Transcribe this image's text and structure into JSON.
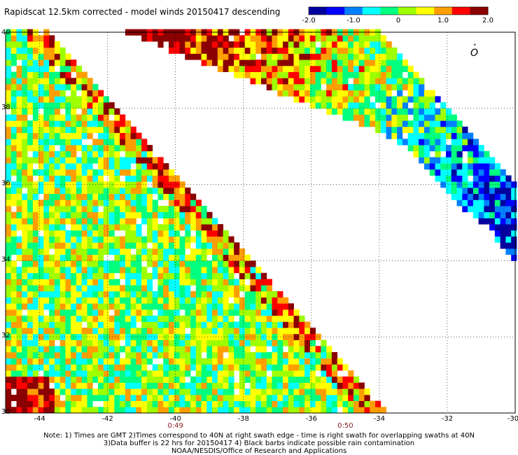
{
  "chart_data": {
    "type": "heatmap",
    "title": "Rapidscat 12.5km corrected - model winds 20150417 descending",
    "x_ticks": [
      "-44",
      "-42",
      "-40",
      "-38",
      "-36",
      "-34",
      "-32",
      "-30"
    ],
    "y_ticks": [
      "30",
      "32",
      "34",
      "36",
      "38",
      "40"
    ],
    "xlim": [
      -45,
      -30
    ],
    "ylim": [
      30,
      40
    ],
    "grid": true,
    "colorbar": {
      "range": [
        -2.0,
        2.0
      ],
      "ticks": [
        "-2.0",
        "-1.0",
        "0",
        "1.0",
        "2.0"
      ],
      "position": "top-right"
    },
    "colors": [
      "#00009e",
      "#0000ff",
      "#007fff",
      "#00ffff",
      "#00ff7f",
      "#9eff00",
      "#ffff00",
      "#ff9e00",
      "#ff0000",
      "#8b0000"
    ],
    "time_labels": [
      {
        "text": "0:49",
        "lon": -40
      },
      {
        "text": "0:50",
        "lon": -35
      }
    ],
    "swaths": [
      {
        "name": "",
        "polygon": [
          [
            -45,
            40
          ],
          [
            -43.8,
            40
          ],
          [
            -33.8,
            30
          ],
          [
            -45,
            30
          ]
        ]
      },
      {
        "name": "",
        "polygon": [
          [
            -41.5,
            40
          ],
          [
            -34,
            40
          ],
          [
            -30,
            36
          ],
          [
            -30,
            34
          ],
          [
            -33.5,
            37.2
          ]
        ]
      }
    ],
    "notes": [
      "Note: 1) Times are GMT 2)Times correspond to 40N at right swath edge - time is right swath for overlapping swaths at 40N",
      "3)Data buffer is 22 hrs for 20150417 4) Black barbs indicate possible rain contamination",
      "NOAA/NESDIS/Office of Research and Applications"
    ]
  }
}
